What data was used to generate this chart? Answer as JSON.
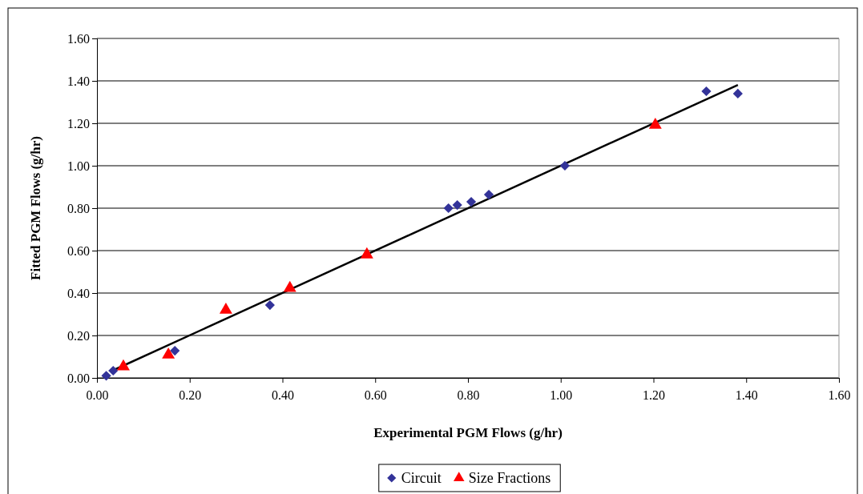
{
  "chart_data": {
    "type": "scatter",
    "xlabel": "Experimental PGM Flows (g/hr)",
    "ylabel": "Fitted PGM Flows (g/hr)",
    "xlim": [
      0,
      1.6
    ],
    "ylim": [
      0,
      1.6
    ],
    "xticks": [
      {
        "value": 0,
        "label": "0.00"
      },
      {
        "value": 0.2,
        "label": "0.20"
      },
      {
        "value": 0.4,
        "label": "0.40"
      },
      {
        "value": 0.6,
        "label": "0.60"
      },
      {
        "value": 0.8,
        "label": "0.80"
      },
      {
        "value": 1,
        "label": "1.00"
      },
      {
        "value": 1.2,
        "label": "1.20"
      },
      {
        "value": 1.4,
        "label": "1.40"
      },
      {
        "value": 1.6,
        "label": "1.60"
      }
    ],
    "yticks": [
      {
        "value": 0,
        "label": "0.00"
      },
      {
        "value": 0.2,
        "label": "0.20"
      },
      {
        "value": 0.4,
        "label": "0.40"
      },
      {
        "value": 0.6,
        "label": "0.60"
      },
      {
        "value": 0.8,
        "label": "0.80"
      },
      {
        "value": 1,
        "label": "1.00"
      },
      {
        "value": 1.2,
        "label": "1.20"
      },
      {
        "value": 1.4,
        "label": "1.40"
      },
      {
        "value": 1.6,
        "label": "1.60"
      }
    ],
    "grid": "y",
    "legend": "bottom",
    "series": [
      {
        "type": "line",
        "color": "#000000",
        "marker": "none",
        "x": [
          0.033,
          1.382
        ],
        "values": [
          0.034,
          1.381
        ]
      },
      {
        "name": "Circuit",
        "color": "#333399",
        "marker": "diamond",
        "x": [
          0.02,
          0.035,
          0.168,
          0.373,
          0.758,
          0.777,
          0.807,
          0.845,
          1.009,
          1.314,
          1.382
        ],
        "values": [
          0.01,
          0.034,
          0.128,
          0.343,
          0.8,
          0.815,
          0.83,
          0.864,
          1.0,
          1.351,
          1.34
        ]
      },
      {
        "name": "Size Fractions",
        "color": "#ff0000",
        "marker": "triangle",
        "x": [
          0.057,
          0.154,
          0.278,
          0.416,
          0.582,
          1.204
        ],
        "values": [
          0.053,
          0.109,
          0.32,
          0.423,
          0.581,
          1.192
        ]
      }
    ]
  }
}
